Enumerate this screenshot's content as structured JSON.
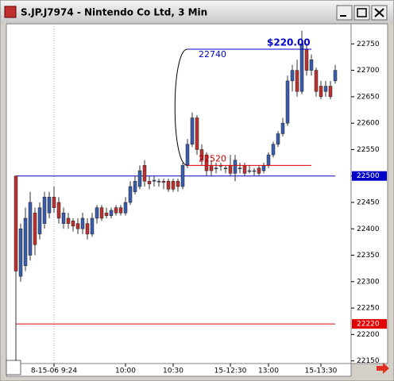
{
  "window": {
    "title": "S.JP.J7974 - Nintendo Co Ltd, 3 Min"
  },
  "chart_data": {
    "type": "candlestick",
    "categories": [
      null,
      null,
      null,
      null,
      null,
      null,
      null,
      null,
      "8-15-06 9:24",
      null,
      null,
      null,
      null,
      null,
      null,
      null,
      null,
      null,
      null,
      null,
      null,
      null,
      null,
      "10:00",
      null,
      null,
      null,
      null,
      null,
      null,
      null,
      null,
      null,
      "10:30",
      null,
      null,
      null,
      null,
      null,
      null,
      null,
      null,
      null,
      null,
      null,
      "15-12:30",
      null,
      null,
      null,
      null,
      null,
      null,
      null,
      "13:00",
      null,
      null,
      null,
      null,
      null,
      null,
      null,
      null,
      null,
      null,
      "15-13:30",
      null,
      null,
      null
    ],
    "open": [
      22500,
      22310,
      22330,
      22350,
      22430,
      22390,
      22410,
      22430,
      22460,
      22450,
      22410,
      22420,
      22415,
      22410,
      22400,
      22410,
      22390,
      22420,
      22440,
      22430,
      22425,
      22440,
      22440,
      22430,
      22450,
      22470,
      22480,
      22520,
      22490,
      22490,
      22490,
      22490,
      22490,
      22490,
      22490,
      22480,
      22520,
      22560,
      22610,
      22550,
      22540,
      22520,
      22515,
      22520,
      22515,
      22520,
      22505,
      22515,
      22520,
      22510,
      22510,
      22515,
      22510,
      22520,
      22540,
      22560,
      22580,
      22600,
      22680,
      22700,
      22660,
      22740,
      22700,
      22700,
      22670,
      22660,
      22670,
      22680
    ],
    "high": [
      22500,
      22410,
      22440,
      22470,
      22440,
      22450,
      22470,
      22470,
      22480,
      22460,
      22440,
      22430,
      22420,
      22420,
      22430,
      22420,
      22430,
      22445,
      22445,
      22440,
      22440,
      22445,
      22445,
      22460,
      22490,
      22500,
      22520,
      22530,
      22500,
      22500,
      22495,
      22495,
      22495,
      22495,
      22495,
      22525,
      22570,
      22620,
      22615,
      22560,
      22545,
      22530,
      22525,
      22525,
      22520,
      22540,
      22540,
      22525,
      22525,
      22520,
      22515,
      22520,
      22525,
      22545,
      22565,
      22585,
      22610,
      22690,
      22710,
      22720,
      22775,
      22750,
      22730,
      22705,
      22680,
      22680,
      22680,
      22710
    ],
    "low": [
      22150,
      22300,
      22320,
      22340,
      22350,
      22380,
      22400,
      22420,
      22430,
      22410,
      22400,
      22400,
      22395,
      22390,
      22390,
      22380,
      22385,
      22410,
      22415,
      22420,
      22420,
      22425,
      22425,
      22425,
      22445,
      22465,
      22475,
      22480,
      22475,
      22480,
      22480,
      22475,
      22470,
      22470,
      22470,
      22475,
      22515,
      22555,
      22540,
      22520,
      22500,
      22500,
      22505,
      22510,
      22505,
      22500,
      22490,
      22505,
      22500,
      22505,
      22500,
      22500,
      22505,
      22515,
      22535,
      22555,
      22575,
      22595,
      22660,
      22650,
      22655,
      22690,
      22690,
      22650,
      22645,
      22650,
      22645,
      22675
    ],
    "close": [
      22320,
      22400,
      22420,
      22450,
      22370,
      22440,
      22460,
      22460,
      22440,
      22420,
      22430,
      22410,
      22405,
      22400,
      22420,
      22390,
      22420,
      22440,
      22420,
      22425,
      22435,
      22430,
      22430,
      22450,
      22480,
      22490,
      22510,
      22490,
      22485,
      22492,
      22490,
      22488,
      22475,
      22475,
      22480,
      22520,
      22560,
      22610,
      22550,
      22530,
      22510,
      22510,
      22515,
      22520,
      22515,
      22505,
      22530,
      22515,
      22505,
      22510,
      22510,
      22505,
      22520,
      22540,
      22560,
      22580,
      22600,
      22680,
      22700,
      22660,
      22750,
      22700,
      22720,
      22660,
      22650,
      22670,
      22650,
      22700
    ],
    "up_color": "#3a5ca8",
    "down_color": "#b83232",
    "ylim": [
      22145,
      22788
    ],
    "yticks": [
      22150,
      22200,
      22250,
      22300,
      22350,
      22400,
      22450,
      22500,
      22550,
      22600,
      22650,
      22700,
      22750
    ],
    "levels": [
      {
        "value": 22500,
        "color": "#0000c8"
      },
      {
        "value": 22220,
        "color": "#e00000"
      }
    ],
    "measure": {
      "start": 22520,
      "end": 22740,
      "label": "$220.00"
    }
  }
}
